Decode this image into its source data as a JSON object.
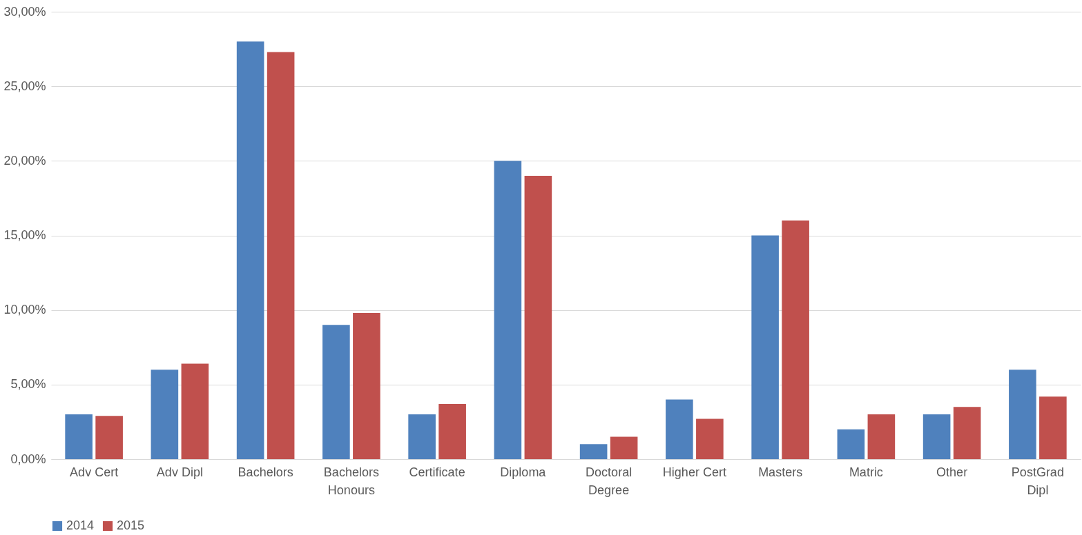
{
  "chart_data": {
    "type": "bar",
    "categories": [
      "Adv Cert",
      "Adv Dipl",
      "Bachelors",
      "Bachelors Honours",
      "Certificate",
      "Diploma",
      "Doctoral Degree",
      "Higher Cert",
      "Masters",
      "Matric",
      "Other",
      "PostGrad Dipl"
    ],
    "series": [
      {
        "name": "2014",
        "color": "#4f81bd",
        "values": [
          3.0,
          6.0,
          28.0,
          9.0,
          3.0,
          20.0,
          1.0,
          4.0,
          15.0,
          2.0,
          3.0,
          6.0
        ]
      },
      {
        "name": "2015",
        "color": "#c0504d",
        "values": [
          2.9,
          6.4,
          27.3,
          9.8,
          3.7,
          19.0,
          1.5,
          2.7,
          16.0,
          3.0,
          3.5,
          4.2
        ]
      }
    ],
    "ylim": [
      0,
      30
    ],
    "yticks": [
      {
        "value": 0,
        "label": "0,00%"
      },
      {
        "value": 5,
        "label": "5,00%"
      },
      {
        "value": 10,
        "label": "10,00%"
      },
      {
        "value": 15,
        "label": "15,00%"
      },
      {
        "value": 20,
        "label": "20,00%"
      },
      {
        "value": 25,
        "label": "25,00%"
      },
      {
        "value": 30,
        "label": "30,00%"
      }
    ],
    "grid": "y",
    "legend": "bottom"
  }
}
